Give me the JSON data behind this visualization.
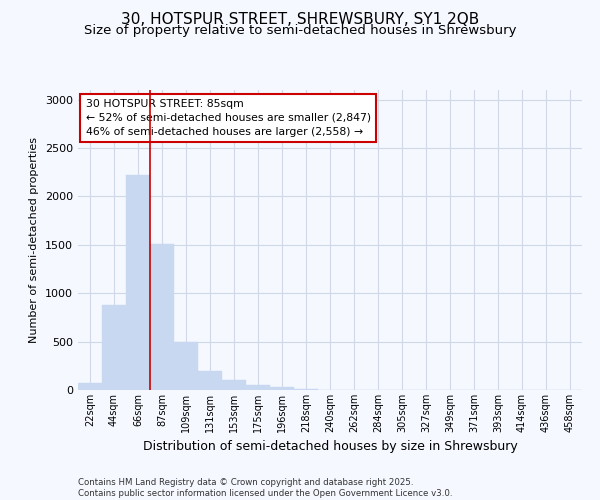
{
  "title_line1": "30, HOTSPUR STREET, SHREWSBURY, SY1 2QB",
  "title_line2": "Size of property relative to semi-detached houses in Shrewsbury",
  "xlabel": "Distribution of semi-detached houses by size in Shrewsbury",
  "ylabel": "Number of semi-detached properties",
  "categories": [
    "22sqm",
    "44sqm",
    "66sqm",
    "87sqm",
    "109sqm",
    "131sqm",
    "153sqm",
    "175sqm",
    "196sqm",
    "218sqm",
    "240sqm",
    "262sqm",
    "284sqm",
    "305sqm",
    "327sqm",
    "349sqm",
    "371sqm",
    "393sqm",
    "414sqm",
    "436sqm",
    "458sqm"
  ],
  "values": [
    75,
    880,
    2220,
    1510,
    500,
    200,
    100,
    50,
    30,
    10,
    5,
    3,
    0,
    0,
    0,
    0,
    0,
    0,
    0,
    0,
    0
  ],
  "bar_color": "#c8d8f0",
  "bar_edge_color": "#c8d8f0",
  "annotation_text": "30 HOTSPUR STREET: 85sqm\n← 52% of semi-detached houses are smaller (2,847)\n46% of semi-detached houses are larger (2,558) →",
  "annotation_box_color": "#ffffff",
  "annotation_box_edge_color": "#cc0000",
  "ylim": [
    0,
    3100
  ],
  "footer_line1": "Contains HM Land Registry data © Crown copyright and database right 2025.",
  "footer_line2": "Contains public sector information licensed under the Open Government Licence v3.0.",
  "background_color": "#f5f8ff",
  "plot_bg_color": "#f5f8ff",
  "grid_color": "#d0d8e8",
  "title_fontsize": 11,
  "subtitle_fontsize": 9.5,
  "bar_width": 1.0,
  "red_line_index": 3
}
